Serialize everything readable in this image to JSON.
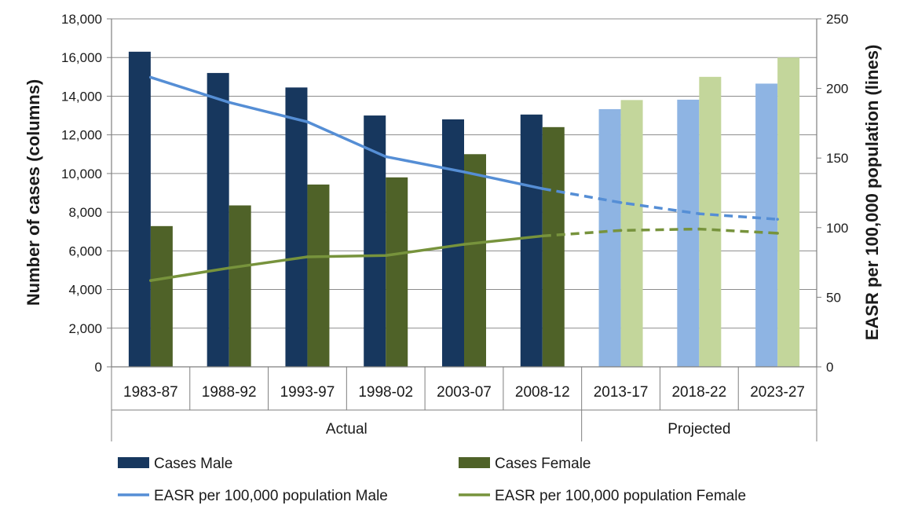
{
  "chart_data": {
    "type": "bar",
    "categories": [
      "1983-87",
      "1988-92",
      "1993-97",
      "1998-02",
      "2003-07",
      "2008-12",
      "2013-17",
      "2018-22",
      "2023-27"
    ],
    "groups": [
      {
        "label": "Actual",
        "categories": [
          "1983-87",
          "1988-92",
          "1993-97",
          "1998-02",
          "2003-07",
          "2008-12"
        ]
      },
      {
        "label": "Projected",
        "categories": [
          "2013-17",
          "2018-22",
          "2023-27"
        ]
      }
    ],
    "ylabel": "Number of cases (columns)",
    "y2label": "EASR per 100,000 population (lines)",
    "ylim": [
      0,
      18000
    ],
    "y2lim": [
      0,
      250
    ],
    "yticks": [
      "0",
      "2,000",
      "4,000",
      "6,000",
      "8,000",
      "10,000",
      "12,000",
      "14,000",
      "16,000",
      "18,000"
    ],
    "y2ticks": [
      "0",
      "50",
      "100",
      "150",
      "200",
      "250"
    ],
    "grid": true,
    "legend_position": "bottom",
    "series": [
      {
        "name": "Cases Male",
        "type": "bar",
        "axis": "left",
        "color": "#17375E",
        "projected_color": "#8EB4E3",
        "values": [
          16300,
          15200,
          14450,
          13000,
          12800,
          13050,
          13330,
          13820,
          14650
        ]
      },
      {
        "name": "Cases Female",
        "type": "bar",
        "axis": "left",
        "color": "#4F6228",
        "projected_color": "#C3D69B",
        "values": [
          7280,
          8350,
          9430,
          9800,
          11000,
          12400,
          13800,
          15000,
          16000
        ]
      },
      {
        "name": "EASR per 100,000 population Male",
        "type": "line",
        "axis": "right",
        "color": "#558ED5",
        "values": [
          208,
          190,
          176,
          151,
          140,
          128,
          118,
          110,
          106
        ],
        "dashed_from_index": 5
      },
      {
        "name": "EASR per 100,000 population Female",
        "type": "line",
        "axis": "right",
        "color": "#77933C",
        "values": [
          62,
          71,
          79,
          80,
          88,
          94,
          98,
          99,
          96
        ],
        "dashed_from_index": 5
      }
    ]
  }
}
